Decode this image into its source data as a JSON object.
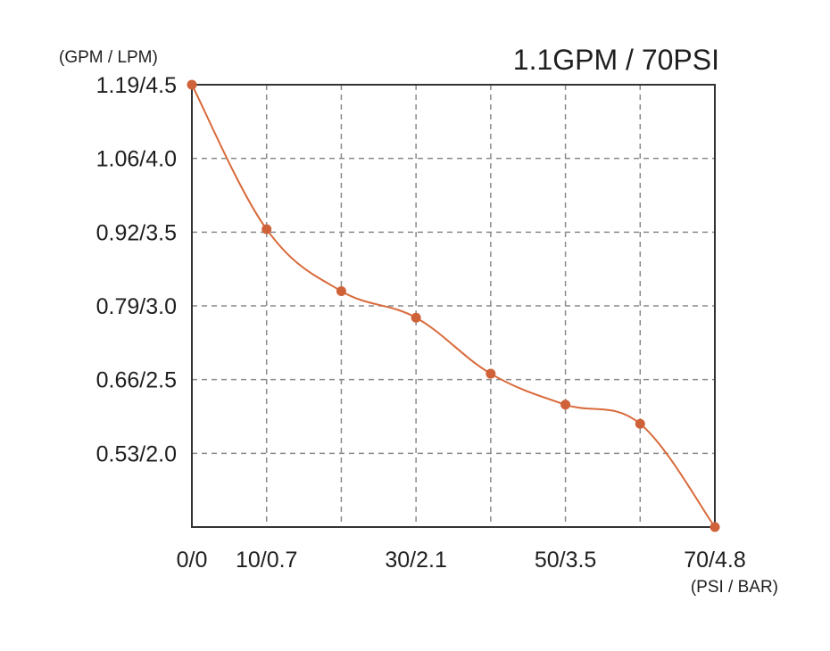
{
  "chart_data": {
    "type": "line",
    "title": "1.1GPM / 70PSI",
    "ylabel": "(GPM / LPM)",
    "xlabel": "(PSI / BAR)",
    "x_tick_labels": [
      {
        "value": 0,
        "label": "0/0"
      },
      {
        "value": 10,
        "label": "10/0.7"
      },
      {
        "value": 30,
        "label": "30/2.1"
      },
      {
        "value": 50,
        "label": "50/3.5"
      },
      {
        "value": 70,
        "label": "70/4.8"
      }
    ],
    "x_grid": [
      10,
      20,
      30,
      40,
      50,
      60
    ],
    "y_tick_labels": [
      {
        "value": 4.5,
        "label": "1.19/4.5"
      },
      {
        "value": 4.0,
        "label": "1.06/4.0"
      },
      {
        "value": 3.5,
        "label": "0.92/3.5"
      },
      {
        "value": 3.0,
        "label": "0.79/3.0"
      },
      {
        "value": 2.5,
        "label": "0.66/2.5"
      },
      {
        "value": 2.0,
        "label": "0.53/2.0"
      }
    ],
    "y_grid": [
      4.0,
      3.5,
      3.0,
      2.5,
      2.0
    ],
    "xlim": [
      0,
      70
    ],
    "ylim": [
      1.5,
      4.5
    ],
    "grid": true,
    "x": [
      0,
      10,
      20,
      30,
      40,
      50,
      60,
      70
    ],
    "series": [
      {
        "values": [
          4.5,
          3.52,
          3.1,
          2.92,
          2.54,
          2.33,
          2.2,
          1.5
        ]
      }
    ],
    "colors": {
      "line": "#d96a3a",
      "marker": "#d0623a",
      "grid": "#8a8a8a",
      "frame": "#333333",
      "text": "#1f1f1f"
    }
  }
}
